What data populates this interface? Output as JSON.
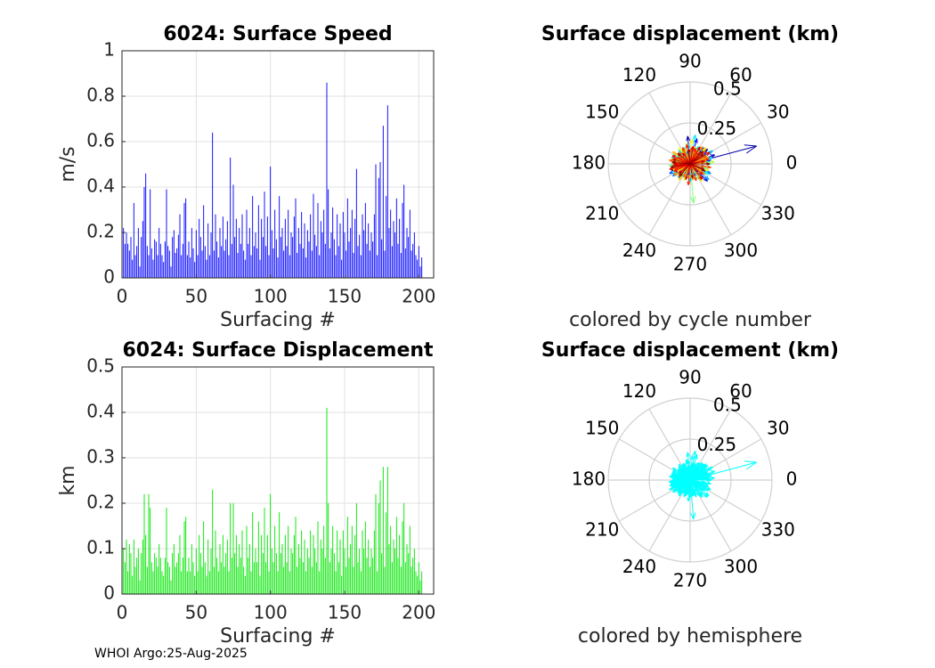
{
  "footer": "WHOI Argo:25-Aug-2025",
  "chart_data": [
    {
      "type": "bar",
      "title": "6024: Surface Speed",
      "xlabel": "Surfacing #",
      "ylabel": "m/s",
      "xlim": [
        0,
        210
      ],
      "ylim": [
        0,
        1
      ],
      "xticks": [
        "0",
        "50",
        "100",
        "150",
        "200"
      ],
      "yticks": [
        "0",
        "0.2",
        "0.4",
        "0.6",
        "0.8",
        "1"
      ],
      "grid": true,
      "color": "#0000ff",
      "values": [
        0.22,
        0.15,
        0.2,
        0.15,
        0.12,
        0.18,
        0.08,
        0.33,
        0.1,
        0.14,
        0.22,
        0.05,
        0.18,
        0.25,
        0.4,
        0.46,
        0.14,
        0.1,
        0.39,
        0.13,
        0.08,
        0.17,
        0.16,
        0.1,
        0.22,
        0.15,
        0.1,
        0.07,
        0.16,
        0.39,
        0.14,
        0.12,
        0.05,
        0.18,
        0.21,
        0.11,
        0.13,
        0.19,
        0.28,
        0.1,
        0.15,
        0.33,
        0.35,
        0.1,
        0.16,
        0.09,
        0.22,
        0.13,
        0.07,
        0.21,
        0.1,
        0.26,
        0.18,
        0.12,
        0.32,
        0.14,
        0.08,
        0.24,
        0.1,
        0.2,
        0.64,
        0.12,
        0.28,
        0.16,
        0.09,
        0.22,
        0.14,
        0.27,
        0.12,
        0.17,
        0.25,
        0.1,
        0.53,
        0.15,
        0.41,
        0.18,
        0.26,
        0.11,
        0.22,
        0.15,
        0.28,
        0.12,
        0.08,
        0.3,
        0.15,
        0.22,
        0.1,
        0.36,
        0.14,
        0.2,
        0.13,
        0.32,
        0.08,
        0.26,
        0.18,
        0.38,
        0.14,
        0.27,
        0.1,
        0.49,
        0.21,
        0.13,
        0.3,
        0.17,
        0.09,
        0.36,
        0.18,
        0.22,
        0.12,
        0.26,
        0.14,
        0.3,
        0.1,
        0.2,
        0.18,
        0.27,
        0.35,
        0.11,
        0.22,
        0.15,
        0.29,
        0.13,
        0.24,
        0.09,
        0.21,
        0.16,
        0.28,
        0.12,
        0.37,
        0.19,
        0.14,
        0.33,
        0.1,
        0.25,
        0.2,
        0.3,
        0.15,
        0.86,
        0.39,
        0.13,
        0.2,
        0.31,
        0.17,
        0.1,
        0.28,
        0.14,
        0.24,
        0.08,
        0.29,
        0.2,
        0.12,
        0.35,
        0.16,
        0.22,
        0.3,
        0.11,
        0.26,
        0.48,
        0.14,
        0.19,
        0.1,
        0.28,
        0.21,
        0.33,
        0.15,
        0.24,
        0.12,
        0.2,
        0.16,
        0.28,
        0.5,
        0.1,
        0.44,
        0.51,
        0.17,
        0.67,
        0.12,
        0.36,
        0.76,
        0.22,
        0.3,
        0.14,
        0.25,
        0.2,
        0.35,
        0.15,
        0.26,
        0.11,
        0.33,
        0.41,
        0.13,
        0.22,
        0.18,
        0.3,
        0.12,
        0.15,
        0.2,
        0.1,
        0.08,
        0.14,
        0.05,
        0.09
      ],
      "source_color": "#0000ff"
    },
    {
      "type": "bar",
      "title": "6024: Surface Displacement",
      "xlabel": "Surfacing #",
      "ylabel": "km",
      "xlim": [
        0,
        210
      ],
      "ylim": [
        0,
        0.5
      ],
      "xticks": [
        "0",
        "50",
        "100",
        "150",
        "200"
      ],
      "yticks": [
        "0",
        "0.1",
        "0.2",
        "0.3",
        "0.4",
        "0.5"
      ],
      "grid": true,
      "color": "#00e600",
      "values": [
        0.1,
        0.07,
        0.12,
        0.05,
        0.11,
        0.09,
        0.04,
        0.12,
        0.06,
        0.08,
        0.1,
        0.03,
        0.09,
        0.12,
        0.22,
        0.13,
        0.06,
        0.22,
        0.19,
        0.07,
        0.05,
        0.09,
        0.08,
        0.06,
        0.11,
        0.08,
        0.05,
        0.04,
        0.08,
        0.19,
        0.07,
        0.06,
        0.03,
        0.09,
        0.11,
        0.06,
        0.07,
        0.09,
        0.13,
        0.05,
        0.08,
        0.16,
        0.17,
        0.05,
        0.08,
        0.05,
        0.11,
        0.07,
        0.04,
        0.1,
        0.05,
        0.13,
        0.09,
        0.06,
        0.16,
        0.07,
        0.04,
        0.12,
        0.05,
        0.1,
        0.23,
        0.06,
        0.14,
        0.08,
        0.05,
        0.11,
        0.07,
        0.13,
        0.06,
        0.09,
        0.12,
        0.05,
        0.2,
        0.08,
        0.2,
        0.09,
        0.13,
        0.06,
        0.11,
        0.08,
        0.14,
        0.06,
        0.04,
        0.15,
        0.08,
        0.11,
        0.05,
        0.18,
        0.07,
        0.1,
        0.07,
        0.16,
        0.04,
        0.13,
        0.09,
        0.19,
        0.07,
        0.13,
        0.05,
        0.22,
        0.1,
        0.07,
        0.15,
        0.09,
        0.05,
        0.18,
        0.09,
        0.11,
        0.06,
        0.13,
        0.07,
        0.15,
        0.05,
        0.1,
        0.09,
        0.13,
        0.17,
        0.06,
        0.11,
        0.08,
        0.14,
        0.07,
        0.12,
        0.05,
        0.1,
        0.08,
        0.14,
        0.06,
        0.13,
        0.1,
        0.07,
        0.16,
        0.05,
        0.12,
        0.1,
        0.15,
        0.08,
        0.41,
        0.2,
        0.07,
        0.1,
        0.15,
        0.09,
        0.05,
        0.14,
        0.07,
        0.12,
        0.04,
        0.14,
        0.1,
        0.06,
        0.17,
        0.08,
        0.11,
        0.15,
        0.06,
        0.13,
        0.2,
        0.07,
        0.1,
        0.05,
        0.14,
        0.1,
        0.16,
        0.08,
        0.12,
        0.06,
        0.1,
        0.08,
        0.14,
        0.22,
        0.05,
        0.2,
        0.25,
        0.09,
        0.28,
        0.06,
        0.18,
        0.28,
        0.11,
        0.15,
        0.07,
        0.12,
        0.1,
        0.17,
        0.08,
        0.13,
        0.06,
        0.16,
        0.2,
        0.07,
        0.11,
        0.09,
        0.15,
        0.06,
        0.08,
        0.1,
        0.05,
        0.04,
        0.07,
        0.03,
        0.05
      ]
    },
    {
      "type": "polar-compass",
      "title": "Surface displacement (km)",
      "caption": "colored by cycle number",
      "rmax": 0.5,
      "rticks": [
        "0.25",
        "0.5"
      ],
      "rtick_values": [
        0.25,
        0.5
      ],
      "angle_labels": [
        "0",
        "30",
        "60",
        "90",
        "120",
        "150",
        "180",
        "210",
        "240",
        "270",
        "300",
        "330"
      ],
      "angle_values": [
        0,
        30,
        60,
        90,
        120,
        150,
        180,
        210,
        240,
        270,
        300,
        330
      ],
      "coloring": "jet-by-index",
      "vectors": [
        [
          125,
          0.08
        ],
        [
          190,
          0.1
        ],
        [
          40,
          0.14
        ],
        [
          155,
          0.07
        ],
        [
          200,
          0.09
        ],
        [
          30,
          0.1
        ],
        [
          80,
          0.09
        ],
        [
          15,
          0.42
        ],
        [
          170,
          0.11
        ],
        [
          95,
          0.17
        ],
        [
          140,
          0.08
        ],
        [
          200,
          0.12
        ],
        [
          60,
          0.1
        ],
        [
          250,
          0.08
        ],
        [
          20,
          0.16
        ],
        [
          180,
          0.09
        ],
        [
          110,
          0.08
        ],
        [
          315,
          0.15
        ],
        [
          340,
          0.12
        ],
        [
          210,
          0.1
        ],
        [
          45,
          0.12
        ],
        [
          160,
          0.1
        ],
        [
          290,
          0.09
        ],
        [
          75,
          0.16
        ],
        [
          195,
          0.08
        ],
        [
          10,
          0.13
        ],
        [
          130,
          0.09
        ],
        [
          260,
          0.08
        ],
        [
          50,
          0.13
        ],
        [
          175,
          0.1
        ],
        [
          230,
          0.11
        ],
        [
          85,
          0.1
        ],
        [
          150,
          0.09
        ],
        [
          330,
          0.11
        ],
        [
          20,
          0.09
        ],
        [
          185,
          0.12
        ],
        [
          100,
          0.07
        ],
        [
          275,
          0.1
        ],
        [
          35,
          0.12
        ],
        [
          165,
          0.08
        ],
        [
          350,
          0.09
        ],
        [
          55,
          0.11
        ],
        [
          205,
          0.14
        ],
        [
          120,
          0.09
        ],
        [
          300,
          0.08
        ],
        [
          25,
          0.1
        ],
        [
          145,
          0.09
        ],
        [
          215,
          0.13
        ],
        [
          70,
          0.07
        ],
        [
          335,
          0.14
        ],
        [
          190,
          0.11
        ],
        [
          105,
          0.08
        ],
        [
          240,
          0.09
        ],
        [
          5,
          0.11
        ],
        [
          160,
          0.12
        ],
        [
          320,
          0.15
        ],
        [
          45,
          0.08
        ],
        [
          180,
          0.09
        ],
        [
          95,
          0.12
        ],
        [
          270,
          0.11
        ],
        [
          30,
          0.16
        ],
        [
          200,
          0.07
        ],
        [
          130,
          0.11
        ],
        [
          350,
          0.1
        ],
        [
          60,
          0.08
        ],
        [
          190,
          0.1
        ],
        [
          15,
          0.14
        ],
        [
          170,
          0.09
        ],
        [
          310,
          0.12
        ],
        [
          80,
          0.18
        ],
        [
          220,
          0.1
        ],
        [
          140,
          0.1
        ],
        [
          5,
          0.12
        ],
        [
          185,
          0.08
        ],
        [
          255,
          0.09
        ],
        [
          40,
          0.1
        ],
        [
          160,
          0.08
        ],
        [
          330,
          0.13
        ],
        [
          110,
          0.11
        ],
        [
          205,
          0.12
        ],
        [
          20,
          0.09
        ],
        [
          175,
          0.1
        ],
        [
          285,
          0.09
        ],
        [
          65,
          0.12
        ],
        [
          195,
          0.11
        ],
        [
          0,
          0.13
        ],
        [
          150,
          0.12
        ],
        [
          235,
          0.1
        ],
        [
          90,
          0.08
        ],
        [
          345,
          0.11
        ],
        [
          25,
          0.12
        ],
        [
          170,
          0.09
        ],
        [
          210,
          0.09
        ],
        [
          120,
          0.1
        ],
        [
          300,
          0.11
        ],
        [
          50,
          0.09
        ],
        [
          185,
          0.13
        ],
        [
          275,
          0.24
        ],
        [
          10,
          0.1
        ],
        [
          200,
          0.08
        ],
        [
          45,
          0.12
        ],
        [
          135,
          0.08
        ],
        [
          320,
          0.09
        ],
        [
          180,
          0.1
        ],
        [
          70,
          0.09
        ],
        [
          225,
          0.11
        ],
        [
          5,
          0.15
        ],
        [
          160,
          0.1
        ],
        [
          290,
          0.1
        ],
        [
          100,
          0.13
        ],
        [
          195,
          0.12
        ],
        [
          35,
          0.09
        ],
        [
          250,
          0.11
        ],
        [
          175,
          0.08
        ],
        [
          340,
          0.12
        ],
        [
          60,
          0.1
        ],
        [
          210,
          0.09
        ],
        [
          125,
          0.12
        ],
        [
          15,
          0.11
        ],
        [
          185,
          0.1
        ],
        [
          305,
          0.13
        ],
        [
          85,
          0.15
        ],
        [
          200,
          0.11
        ],
        [
          30,
          0.1
        ],
        [
          165,
          0.12
        ],
        [
          265,
          0.09
        ],
        [
          45,
          0.14
        ],
        [
          190,
          0.09
        ],
        [
          110,
          0.1
        ],
        [
          330,
          0.08
        ],
        [
          5,
          0.09
        ],
        [
          175,
          0.1
        ],
        [
          235,
          0.12
        ],
        [
          75,
          0.11
        ],
        [
          145,
          0.13
        ],
        [
          350,
          0.1
        ],
        [
          195,
          0.08
        ],
        [
          20,
          0.12
        ],
        [
          280,
          0.1
        ],
        [
          120,
          0.09
        ],
        [
          180,
          0.11
        ],
        [
          55,
          0.13
        ],
        [
          215,
          0.12
        ],
        [
          325,
          0.11
        ],
        [
          95,
          0.09
        ],
        [
          160,
          0.1
        ],
        [
          10,
          0.1
        ],
        [
          245,
          0.09
        ],
        [
          135,
          0.1
        ],
        [
          190,
          0.12
        ],
        [
          65,
          0.09
        ],
        [
          305,
          0.12
        ],
        [
          25,
          0.11
        ],
        [
          170,
          0.13
        ],
        [
          225,
          0.1
        ],
        [
          85,
          0.1
        ],
        [
          350,
          0.13
        ],
        [
          150,
          0.08
        ],
        [
          200,
          0.1
        ],
        [
          40,
          0.12
        ],
        [
          290,
          0.11
        ],
        [
          115,
          0.11
        ],
        [
          185,
          0.09
        ],
        [
          15,
          0.12
        ],
        [
          265,
          0.13
        ],
        [
          70,
          0.1
        ],
        [
          180,
          0.1
        ],
        [
          320,
          0.1
        ],
        [
          50,
          0.09
        ],
        [
          205,
          0.11
        ],
        [
          100,
          0.12
        ],
        [
          155,
          0.12
        ],
        [
          340,
          0.09
        ],
        [
          195,
          0.13
        ],
        [
          30,
          0.14
        ],
        [
          255,
          0.1
        ],
        [
          125,
          0.08
        ],
        [
          185,
          0.1
        ],
        [
          80,
          0.11
        ],
        [
          310,
          0.12
        ],
        [
          10,
          0.09
        ],
        [
          220,
          0.09
        ],
        [
          165,
          0.11
        ],
        [
          60,
          0.12
        ],
        [
          280,
          0.09
        ],
        [
          190,
          0.12
        ],
        [
          35,
          0.1
        ],
        [
          140,
          0.1
        ],
        [
          0,
          0.12
        ],
        [
          230,
          0.1
        ],
        [
          95,
          0.09
        ],
        [
          175,
          0.11
        ],
        [
          335,
          0.1
        ],
        [
          45,
          0.11
        ]
      ]
    },
    {
      "type": "polar-compass",
      "title": "Surface displacement (km)",
      "caption": "colored by hemisphere",
      "rmax": 0.5,
      "rticks": [
        "0.25",
        "0.5"
      ],
      "rtick_values": [
        0.25,
        0.5
      ],
      "angle_labels": [
        "0",
        "30",
        "60",
        "90",
        "120",
        "150",
        "180",
        "210",
        "240",
        "270",
        "300",
        "330"
      ],
      "angle_values": [
        0,
        30,
        60,
        90,
        120,
        150,
        180,
        210,
        240,
        270,
        300,
        330
      ],
      "coloring": "single",
      "color": "#00ffff",
      "vectors": "same-as-previous"
    }
  ]
}
